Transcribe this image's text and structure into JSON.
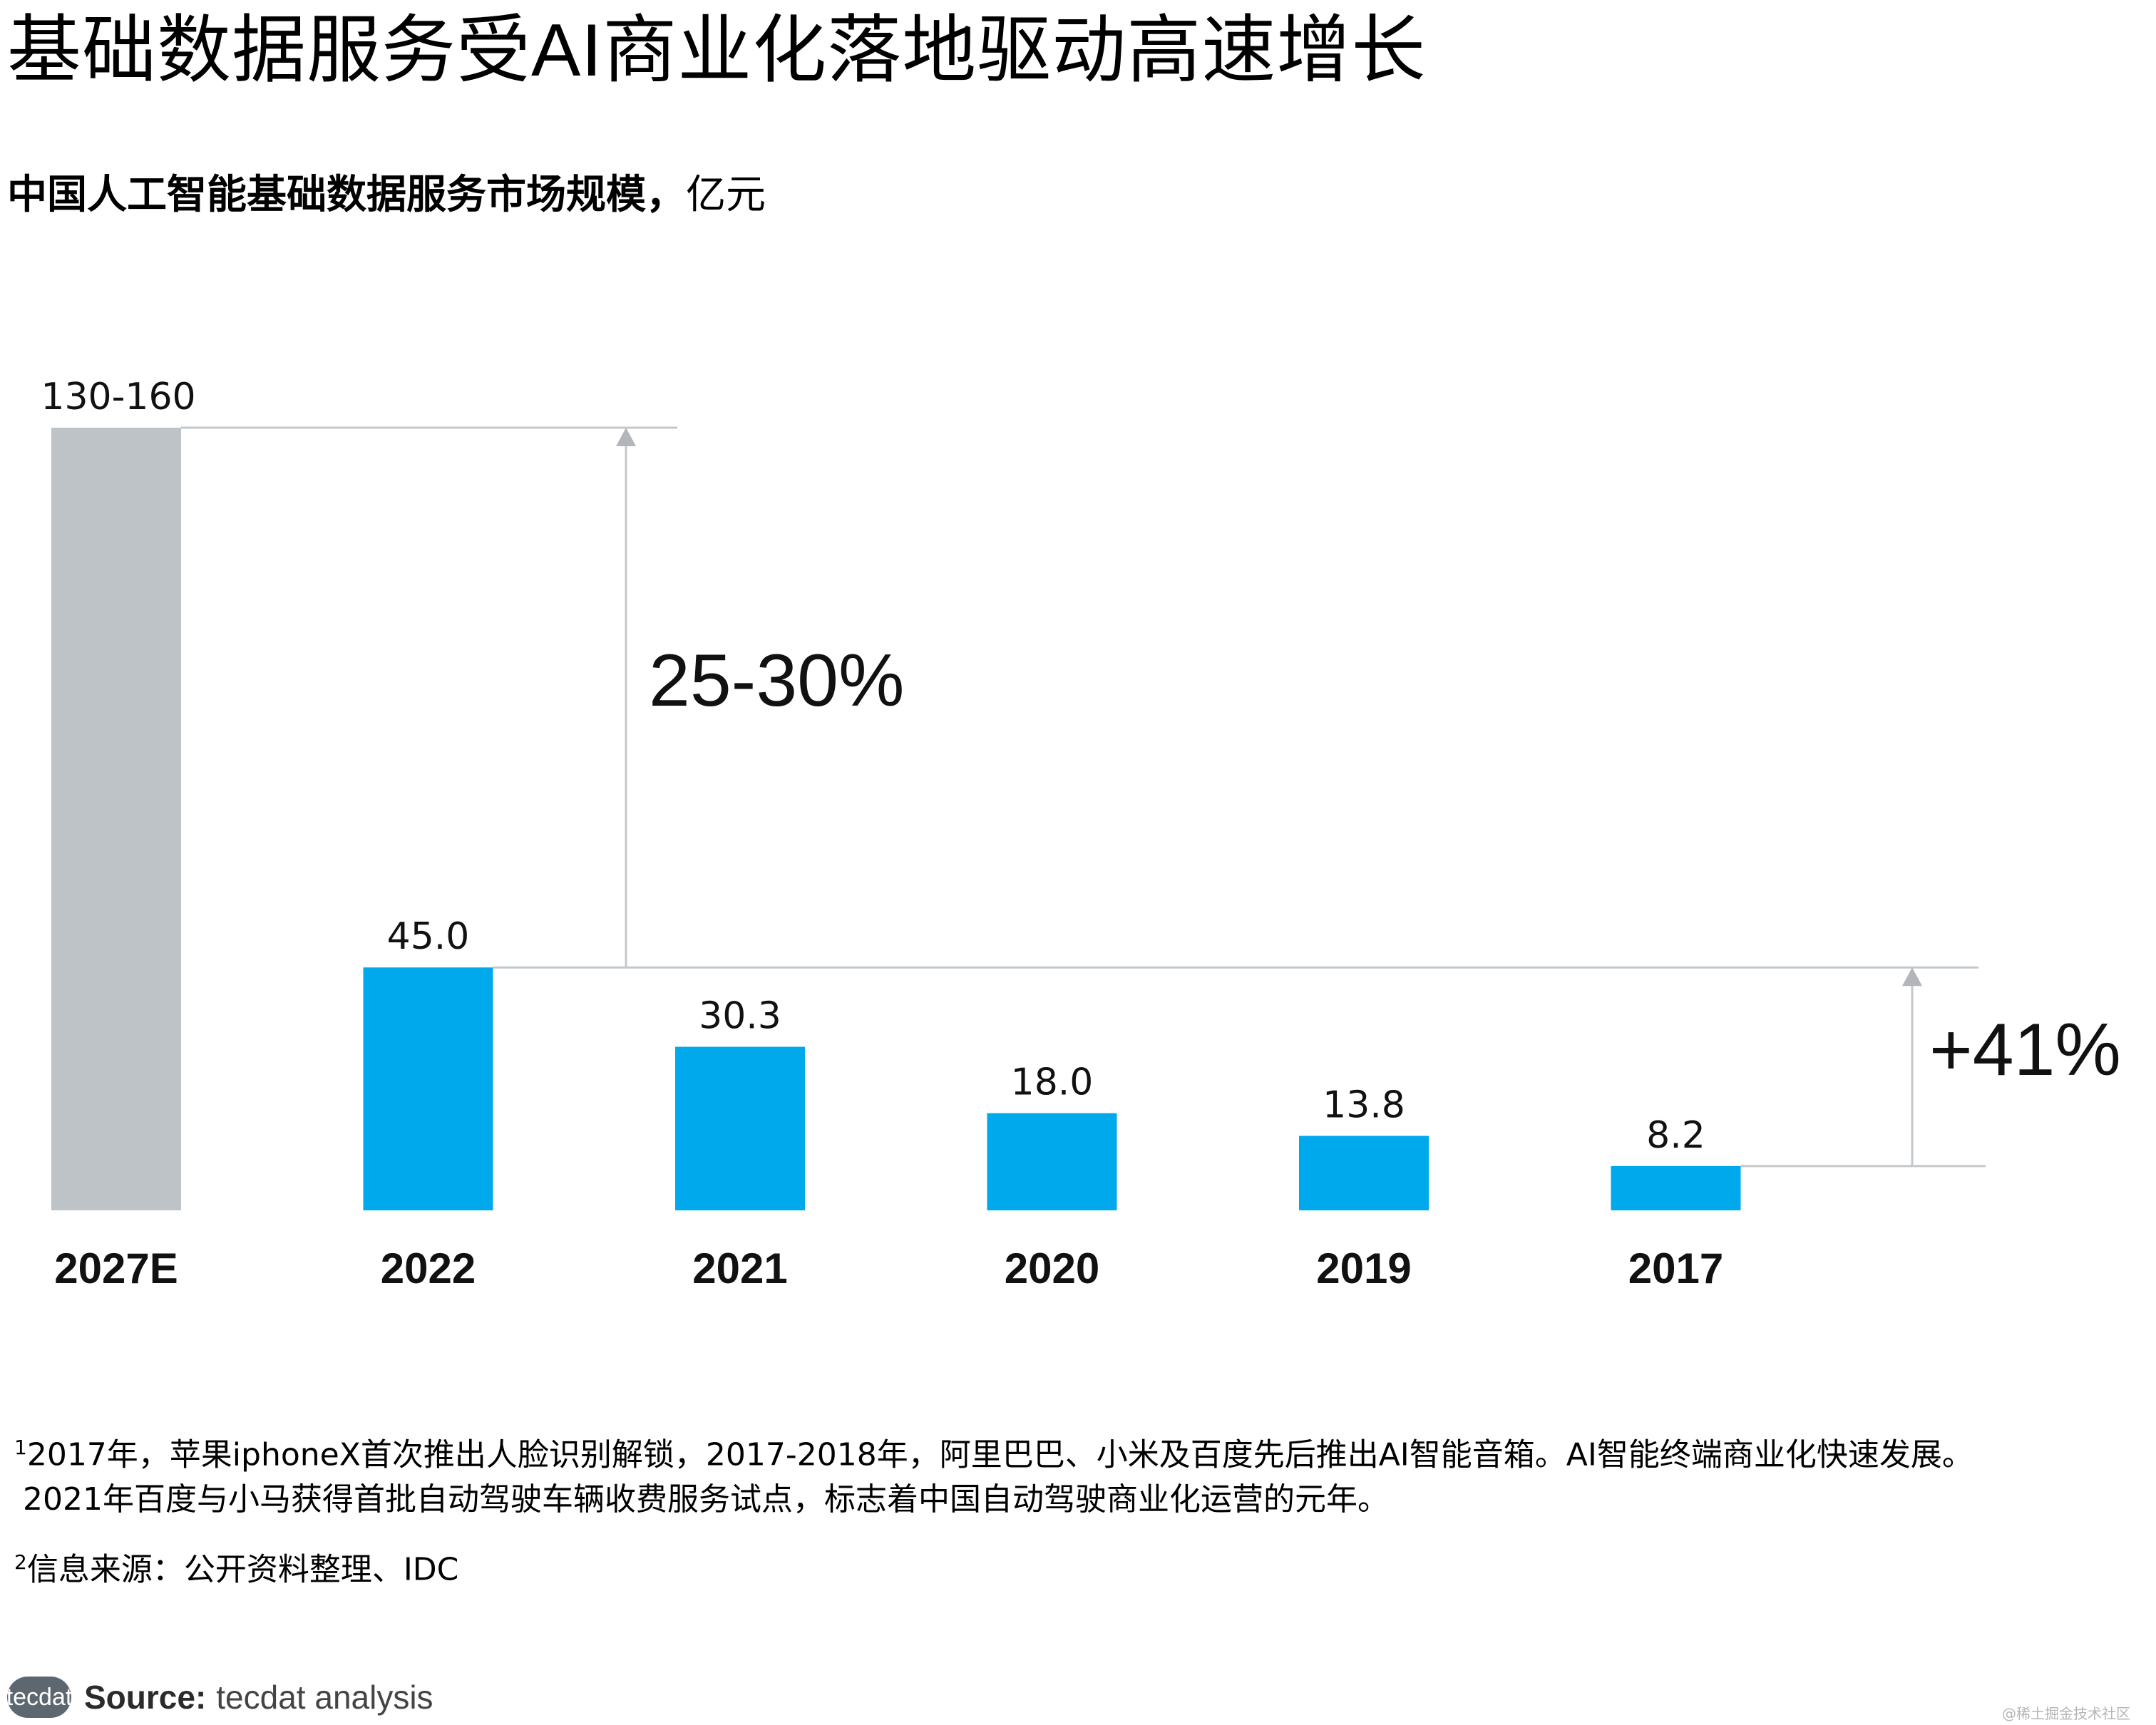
{
  "title": "基础数据服务受AI商业化落地驱动高速增长",
  "subtitle": {
    "bold": "中国人工智能基础数据服务市场规模，",
    "unit": "亿元"
  },
  "chart_data": {
    "type": "bar",
    "categories": [
      "2027E",
      "2022",
      "2021",
      "2020",
      "2019",
      "2017"
    ],
    "values": [
      145,
      45.0,
      30.3,
      18.0,
      13.8,
      8.2
    ],
    "value_labels": [
      "130-160",
      "45.0",
      "30.3",
      "18.0",
      "13.8",
      "8.2"
    ],
    "colors": [
      "#bec3c7",
      "#00a8ec",
      "#00a8ec",
      "#00a8ec",
      "#00a8ec",
      "#00a8ec"
    ],
    "ylim": [
      0,
      145
    ],
    "annotations": [
      {
        "label": "25-30%",
        "from": "2022",
        "to": "2027E"
      },
      {
        "label": "+41%",
        "from": "2017",
        "to": "2022"
      }
    ],
    "grid": false,
    "legend": "none"
  },
  "footnotes": {
    "note1_sup": "1",
    "note1_line1": "2017年，苹果iphoneX首次推出人脸识别解锁，2017-2018年，阿里巴巴、小米及百度先后推出AI智能音箱。AI智能终端商业化快速发展。",
    "note1_line2": "2021年百度与小马获得首批自动驾驶车辆收费服务试点，标志着中国自动驾驶商业化运营的元年。",
    "note2_sup": "2",
    "note2": "信息来源：公开资料整理、IDC"
  },
  "source": {
    "logo": "tecdat",
    "label": "Source:",
    "text": "tecdat analysis"
  },
  "watermark": "@稀土掘金技术社区"
}
